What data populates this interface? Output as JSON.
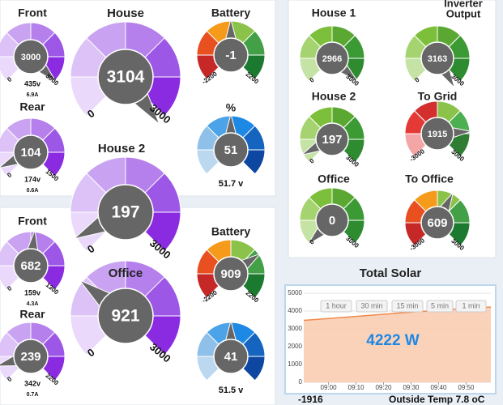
{
  "gauges": [
    {
      "title": "Front",
      "value": 3000,
      "min": 0,
      "max": 3000,
      "sub": [
        "435v",
        "6.9A"
      ],
      "colors": [
        "#ead9fb",
        "#dcc2f7",
        "#c9a3f2",
        "#b57fec",
        "#9d57e6",
        "#8a2be2"
      ]
    },
    {
      "title": "House",
      "value": 3104,
      "min": 0,
      "max": 3000,
      "colors": [
        "#ead9fb",
        "#dcc2f7",
        "#c9a3f2",
        "#b57fec",
        "#9d57e6",
        "#8a2be2"
      ]
    },
    {
      "title": "Battery",
      "value": -1,
      "min": -2200,
      "max": 2200,
      "colors": [
        "#c62828",
        "#e8501f",
        "#f59a1a",
        "#8bc34a",
        "#43a047",
        "#1b7a30"
      ]
    },
    {
      "title": "Rear",
      "value": 104,
      "min": 0,
      "max": 1500,
      "sub": [
        "174v",
        "0.6A"
      ],
      "colors": [
        "#ead9fb",
        "#dcc2f7",
        "#c9a3f2",
        "#b57fec",
        "#9d57e6",
        "#8a2be2"
      ]
    },
    {
      "title": "House 2",
      "value": 197,
      "min": 0,
      "max": 3000,
      "colors": [
        "#ead9fb",
        "#dcc2f7",
        "#c9a3f2",
        "#b57fec",
        "#9d57e6",
        "#8a2be2"
      ]
    },
    {
      "title": "%",
      "value": 51,
      "sub": [
        "51.7 v"
      ],
      "colors": [
        "#bcd8f0",
        "#8fc0ea",
        "#4da3e8",
        "#1e88e5",
        "#1565c0",
        "#0d47a1"
      ]
    },
    {
      "title": "Front",
      "value": 682,
      "min": 0,
      "max": 1300,
      "sub": [
        "159v",
        "4.3A"
      ],
      "colors": [
        "#ead9fb",
        "#dcc2f7",
        "#c9a3f2",
        "#b57fec",
        "#9d57e6",
        "#8a2be2"
      ]
    },
    {
      "title": "Battery",
      "value": 909,
      "min": -2200,
      "max": 2200,
      "colors": [
        "#c62828",
        "#e8501f",
        "#f59a1a",
        "#8bc34a",
        "#43a047",
        "#1b7a30"
      ]
    },
    {
      "title": "Office",
      "value": 921,
      "min": 0,
      "max": 3000,
      "colors": [
        "#ead9fb",
        "#dcc2f7",
        "#c9a3f2",
        "#b57fec",
        "#9d57e6",
        "#8a2be2"
      ]
    },
    {
      "title": "Rear",
      "value": 239,
      "min": 0,
      "max": 2200,
      "sub": [
        "342v",
        "0.7A"
      ],
      "colors": [
        "#ead9fb",
        "#dcc2f7",
        "#c9a3f2",
        "#b57fec",
        "#9d57e6",
        "#8a2be2"
      ]
    },
    {
      "value": 41,
      "sub": [
        "51.5 v"
      ],
      "colors": [
        "#bcd8f0",
        "#8fc0ea",
        "#4da3e8",
        "#1e88e5",
        "#1565c0",
        "#0d47a1"
      ]
    },
    {
      "title": "House 1",
      "value": 2966,
      "min": 0,
      "max": 3000,
      "colors": [
        "#c5e3a5",
        "#a5d36f",
        "#7cbf3a",
        "#5aa832",
        "#3c9a34",
        "#2e8b30"
      ]
    },
    {
      "title": [
        "Inverter",
        "Output"
      ],
      "value": 3163,
      "min": 0,
      "max": 3000,
      "colors": [
        "#c5e3a5",
        "#a5d36f",
        "#7cbf3a",
        "#5aa832",
        "#3c9a34",
        "#2e8b30"
      ]
    },
    {
      "title": "House 2",
      "value": 197,
      "min": 0,
      "max": 3000,
      "colors": [
        "#c5e3a5",
        "#a5d36f",
        "#7cbf3a",
        "#5aa832",
        "#3c9a34",
        "#2e8b30"
      ]
    },
    {
      "title": "To Grid",
      "value": 1915,
      "min": -3000,
      "max": 3000,
      "colors": [
        "#f4a6a6",
        "#e53935",
        "#d32f2f",
        "#8bc34a",
        "#4caf50",
        "#2e7d32"
      ]
    },
    {
      "title": "Office",
      "value": 0,
      "min": 0,
      "max": 3000,
      "colors": [
        "#c5e3a5",
        "#a5d36f",
        "#7cbf3a",
        "#5aa832",
        "#3c9a34",
        "#2e8b30"
      ]
    },
    {
      "title": "To Office",
      "value": 609,
      "min": -3000,
      "max": 3000,
      "colors": [
        "#c62828",
        "#e8501f",
        "#f59a1a",
        "#8bc34a",
        "#43a047",
        "#1b7a30"
      ]
    }
  ],
  "chart_data": {
    "type": "area",
    "title": "Total Solar",
    "x": [
      "08:51",
      "08:55",
      "09:00",
      "09:05",
      "09:10",
      "09:15",
      "09:20",
      "09:25",
      "09:30",
      "09:35",
      "09:40",
      "09:45",
      "09:50",
      "09:55",
      "09:59"
    ],
    "series": [
      {
        "name": "Total Solar",
        "color": "#f08a4b",
        "fill": "#f9cdb2",
        "values": [
          3480,
          3520,
          3580,
          3640,
          3700,
          3760,
          3820,
          3880,
          3940,
          3990,
          4040,
          4100,
          4150,
          4200,
          4222
        ]
      }
    ],
    "xlim": [
      "08:51",
      "09:59"
    ],
    "xticks": [
      "09:00",
      "09:10",
      "09:20",
      "09:30",
      "09:40",
      "09:50"
    ],
    "ylim": [
      0,
      5000
    ],
    "yticks": [
      0,
      1000,
      2000,
      3000,
      4000,
      5000
    ],
    "grid": true,
    "buttons": [
      "1 hour",
      "30 min",
      "15 min",
      "5 min",
      "1 min"
    ],
    "annotation": "4222 W"
  },
  "footer": {
    "left": "-1916",
    "right": "Outside Temp 7.8 oC"
  }
}
